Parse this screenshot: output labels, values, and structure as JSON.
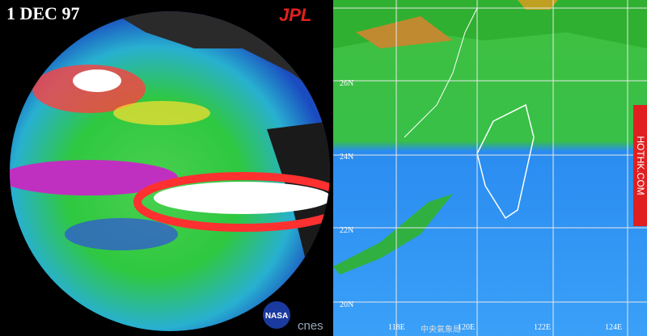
{
  "left_panel": {
    "date": "1 DEC 97",
    "logo": "JPL",
    "nasa": "NASA",
    "cnes": "cnes"
  },
  "right_panel": {
    "lat_labels": [
      "26N",
      "24N",
      "22N",
      "20N"
    ],
    "lon_labels": [
      "118E",
      "120E",
      "122E",
      "124E"
    ],
    "watermark": "HOTHK.COM",
    "credit": "中央氣象局"
  }
}
